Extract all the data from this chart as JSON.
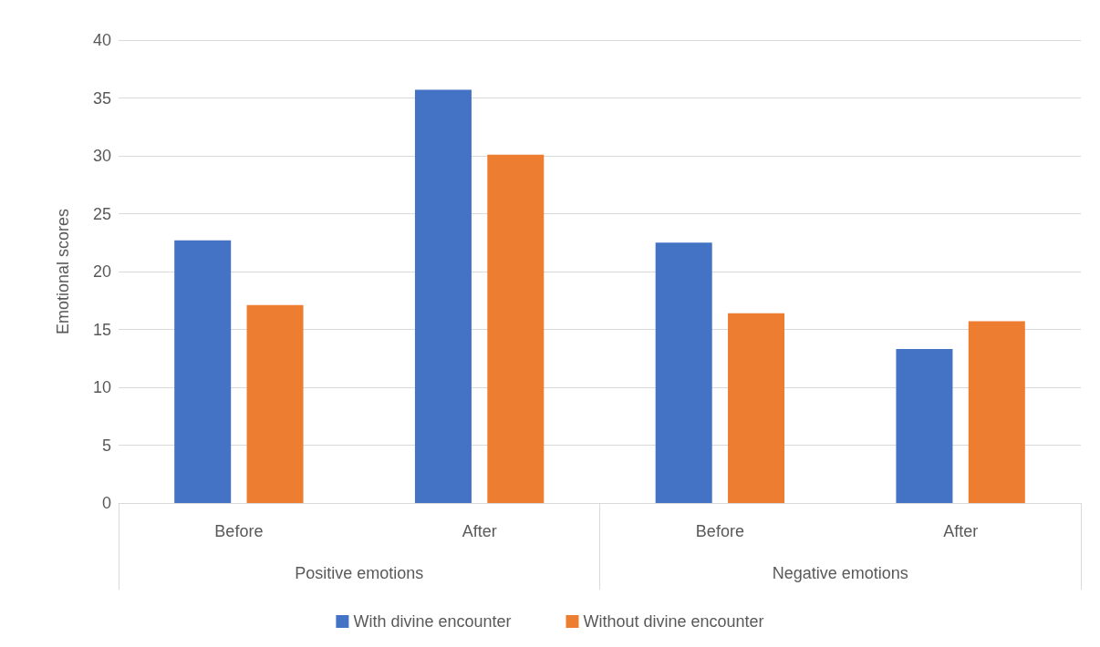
{
  "chart_data": {
    "type": "bar",
    "ylabel": "Emotional scores",
    "categories": [
      "Before",
      "After",
      "Before",
      "After"
    ],
    "annotations": [
      "Positive emotions",
      "Negative emotions"
    ],
    "series": [
      {
        "name": "With divine encounter",
        "color": "#4472c4",
        "values": [
          22.7,
          35.7,
          22.5,
          13.3
        ]
      },
      {
        "name": "Without divine encounter",
        "color": "#ed7d31",
        "values": [
          17.1,
          30.1,
          16.4,
          15.7
        ]
      }
    ],
    "ylim": [
      0,
      40
    ],
    "yticks": [
      0,
      5,
      10,
      15,
      20,
      25,
      30,
      35,
      40
    ],
    "grid": "y",
    "legend": "bottom"
  }
}
